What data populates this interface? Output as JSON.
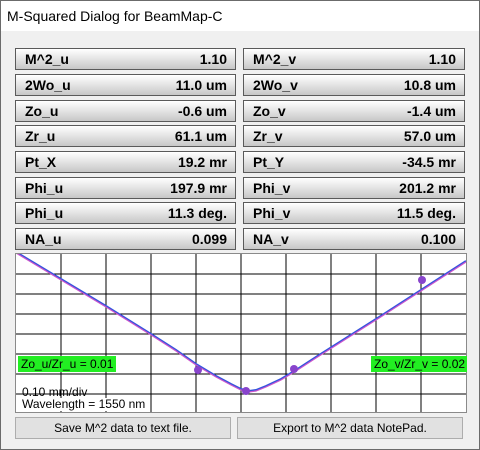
{
  "window": {
    "title": "M-Squared Dialog for BeamMap-C"
  },
  "params_left": [
    {
      "label": "M^2_u",
      "value": "1.10"
    },
    {
      "label": "2Wo_u",
      "value": "11.0 um"
    },
    {
      "label": "Zo_u",
      "value": "-0.6 um"
    },
    {
      "label": "Zr_u",
      "value": "61.1 um"
    },
    {
      "label": "Pt_X",
      "value": "19.2 mr"
    },
    {
      "label": "Phi_u",
      "value": "197.9 mr"
    },
    {
      "label": "Phi_u",
      "value": "11.3 deg."
    },
    {
      "label": "NA_u",
      "value": "0.099"
    }
  ],
  "params_right": [
    {
      "label": "M^2_v",
      "value": "1.10"
    },
    {
      "label": "2Wo_v",
      "value": "10.8 um"
    },
    {
      "label": "Zo_v",
      "value": "-1.4 um"
    },
    {
      "label": "Zr_v",
      "value": "57.0 um"
    },
    {
      "label": "Pt_Y",
      "value": "-34.5 mr"
    },
    {
      "label": "Phi_v",
      "value": "201.2 mr"
    },
    {
      "label": "Phi_v",
      "value": "11.5 deg."
    },
    {
      "label": "NA_v",
      "value": "0.100"
    }
  ],
  "plot": {
    "left_tag": "Zo_u/Zr_u = 0.01",
    "right_tag": "Zo_v/Zr_v = 0.02",
    "scale_text": "0.10 mm/div",
    "wavelength_text": "Wavelength = 1550 nm",
    "colors": {
      "curve_u": "#3355dd",
      "curve_v": "#cc55cc",
      "points": "#8844cc",
      "grid": "#000000"
    }
  },
  "buttons": {
    "save_text": "Save M^2 data to text file.",
    "export_notepad": "Export to M^2 data NotePad."
  }
}
